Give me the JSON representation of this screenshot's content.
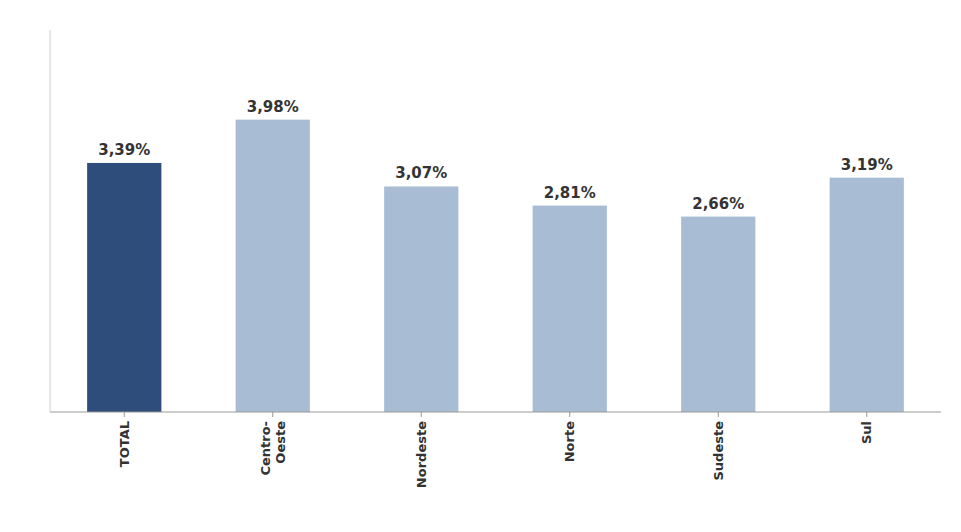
{
  "chart_data": {
    "type": "bar",
    "categories": [
      "TOTAL",
      "Centro-\nOeste",
      "Nordeste",
      "Norte",
      "Sudeste",
      "Sul"
    ],
    "values": [
      3.39,
      3.98,
      3.07,
      2.81,
      2.66,
      3.19
    ],
    "value_labels": [
      "3,39%",
      "3,98%",
      "3,07%",
      "2,81%",
      "2,66%",
      "3,19%"
    ],
    "data_labels": true,
    "colors": [
      "#2e4d7b",
      "#a8bdd4",
      "#a8bdd4",
      "#a8bdd4",
      "#a8bdd4",
      "#a8bdd4"
    ],
    "ylim": [
      0,
      5.2
    ],
    "tick_labels": "x",
    "grid": false
  }
}
